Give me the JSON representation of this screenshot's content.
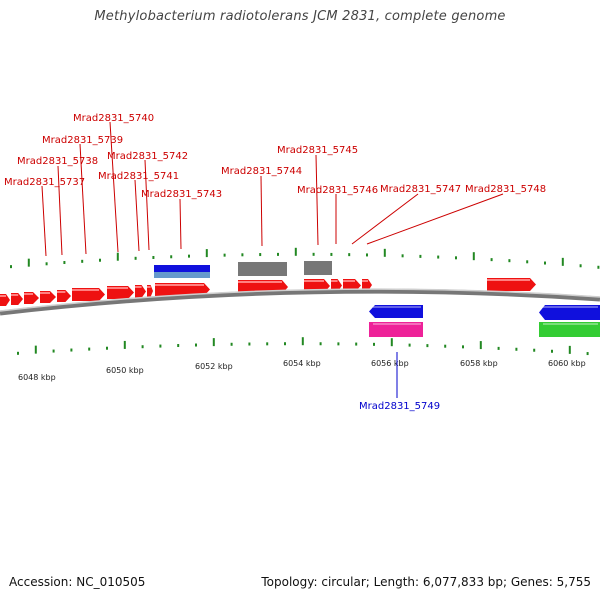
{
  "title": "Methylobacterium radiotolerans JCM 2831, complete genome",
  "footer": {
    "accession_label": "Accession:",
    "accession": "NC_010505",
    "topology": "Topology: circular; Length: 6,077,833 bp; Genes: 5,755"
  },
  "colors": {
    "forward_gene": "#ee1111",
    "reverse_gene": "#1010dd",
    "rrna": "#777777",
    "pink": "#ee2299",
    "green": "#33cc33",
    "lightblue": "#6699cc",
    "backbone": "#888888",
    "tick": "#228822",
    "forward_label": "#cc0000",
    "reverse_label": "#0000cc"
  },
  "forward_labels": [
    {
      "text": "Mrad2831_5737"
    },
    {
      "text": "Mrad2831_5738"
    },
    {
      "text": "Mrad2831_5739"
    },
    {
      "text": "Mrad2831_5740"
    },
    {
      "text": "Mrad2831_5741"
    },
    {
      "text": "Mrad2831_5742"
    },
    {
      "text": "Mrad2831_5743"
    },
    {
      "text": "Mrad2831_5744"
    },
    {
      "text": "Mrad2831_5745"
    },
    {
      "text": "Mrad2831_5746"
    },
    {
      "text": "Mrad2831_5747"
    },
    {
      "text": "Mrad2831_5748"
    }
  ],
  "reverse_labels": [
    {
      "text": "Mrad2831_5749"
    }
  ],
  "kbp_labels": [
    "6048 kbp",
    "6050 kbp",
    "6052 kbp",
    "6054 kbp",
    "6056 kbp",
    "6058 kbp",
    "6060 kbp"
  ]
}
